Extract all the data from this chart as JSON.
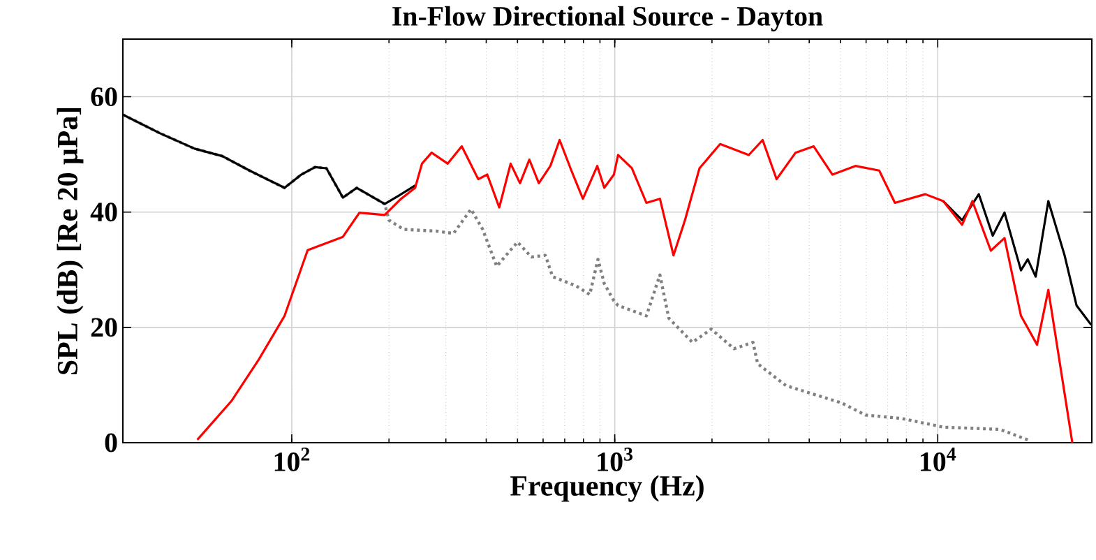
{
  "chart_data": {
    "type": "line",
    "title": "In-Flow Directional Source - Dayton",
    "xlabel": "Frequency (Hz)",
    "ylabel": "SPL (dB) [Re 20 μPa]",
    "log": "x",
    "grid": true,
    "xlim": [
      30,
      30000
    ],
    "ylim": [
      0,
      70
    ],
    "xticks": [
      {
        "value": 100,
        "label": "10$^{2}$"
      },
      {
        "value": 1000,
        "label": "10$^{3}$"
      },
      {
        "value": 10000,
        "label": "10$^{4}$"
      }
    ],
    "yticks": [
      0,
      20,
      40,
      60
    ],
    "series": [
      {
        "color": "#000000",
        "line_style": "solid",
        "x": [
          30,
          39,
          50,
          61,
          74,
          95,
          107,
          118,
          128,
          144,
          159,
          194,
          215,
          241,
          271,
          304,
          336,
          378,
          403,
          439,
          476,
          509,
          544,
          582,
          632,
          675,
          734,
          797,
          883,
          928,
          994,
          1024,
          1130,
          1253,
          1380,
          1520,
          1650,
          1830,
          2120,
          2600,
          2870,
          3170,
          3630,
          4130,
          4720,
          5560,
          6590,
          7370,
          9150,
          10400,
          11900,
          13400,
          14800,
          16100,
          18100,
          19000,
          20100,
          22000,
          24700,
          26900,
          29900
        ],
        "values": [
          56.9,
          53.7,
          51.0,
          49.7,
          47.2,
          44.2,
          46.5,
          47.8,
          47.6,
          42.5,
          44.2,
          41.4,
          42.9,
          44.6,
          null,
          null,
          null,
          null,
          null,
          null,
          null,
          null,
          null,
          null,
          null,
          null,
          null,
          null,
          null,
          null,
          null,
          null,
          null,
          null,
          null,
          null,
          null,
          null,
          null,
          null,
          null,
          null,
          null,
          null,
          null,
          null,
          null,
          null,
          null,
          41.9,
          38.6,
          43.1,
          35.9,
          39.9,
          29.9,
          31.8,
          28.8,
          41.9,
          32.5,
          23.8,
          20.4
        ]
      },
      {
        "color": "#ff0000",
        "line_style": "solid",
        "x": [
          51,
          65,
          79,
          95,
          112,
          144,
          162,
          194,
          218,
          241,
          253,
          271,
          304,
          336,
          378,
          403,
          439,
          476,
          509,
          544,
          582,
          632,
          675,
          734,
          797,
          883,
          928,
          994,
          1024,
          1130,
          1253,
          1380,
          1520,
          1650,
          1830,
          2120,
          2600,
          2870,
          3170,
          3630,
          4130,
          4720,
          5560,
          6590,
          7370,
          9150,
          10400,
          11900,
          12800,
          14600,
          16100,
          18100,
          20300,
          22000,
          26100
        ],
        "values": [
          0.5,
          7.2,
          14.4,
          22.0,
          33.4,
          35.7,
          39.9,
          39.5,
          42.3,
          44.2,
          48.4,
          50.3,
          48.4,
          51.4,
          45.7,
          46.5,
          40.8,
          48.4,
          45.0,
          49.1,
          45.0,
          48.0,
          52.5,
          47.2,
          42.3,
          48.0,
          44.2,
          46.5,
          49.9,
          47.6,
          41.6,
          42.3,
          32.5,
          38.6,
          47.6,
          51.8,
          49.9,
          52.5,
          45.7,
          50.3,
          51.4,
          46.5,
          48.0,
          47.2,
          41.6,
          43.1,
          41.9,
          37.8,
          41.9,
          33.3,
          35.5,
          22.0,
          17.0,
          26.5,
          0.0
        ]
      },
      {
        "color": "#808080",
        "line_style": "dotted",
        "x": [
          30,
          39,
          50,
          61,
          74,
          95,
          107,
          118,
          128,
          144,
          159,
          194,
          200,
          222,
          280,
          317,
          359,
          390,
          431,
          500,
          552,
          610,
          642,
          759,
          837,
          887,
          928,
          994,
          1024,
          1253,
          1380,
          1470,
          1740,
          1990,
          2340,
          2680,
          2770,
          3390,
          4130,
          5040,
          5970,
          7740,
          10400,
          15600,
          19000
        ],
        "values": [
          56.9,
          53.7,
          51.0,
          49.7,
          47.2,
          44.2,
          46.5,
          47.8,
          47.6,
          42.5,
          44.2,
          41.4,
          38.6,
          37.0,
          36.7,
          36.3,
          40.5,
          37.0,
          30.6,
          34.8,
          32.2,
          32.5,
          28.8,
          27.2,
          25.7,
          31.8,
          27.6,
          24.6,
          23.8,
          22.0,
          29.1,
          21.6,
          17.4,
          19.7,
          16.3,
          17.4,
          13.7,
          9.9,
          8.4,
          6.9,
          4.8,
          4.2,
          2.7,
          2.3,
          0.5
        ]
      }
    ]
  }
}
